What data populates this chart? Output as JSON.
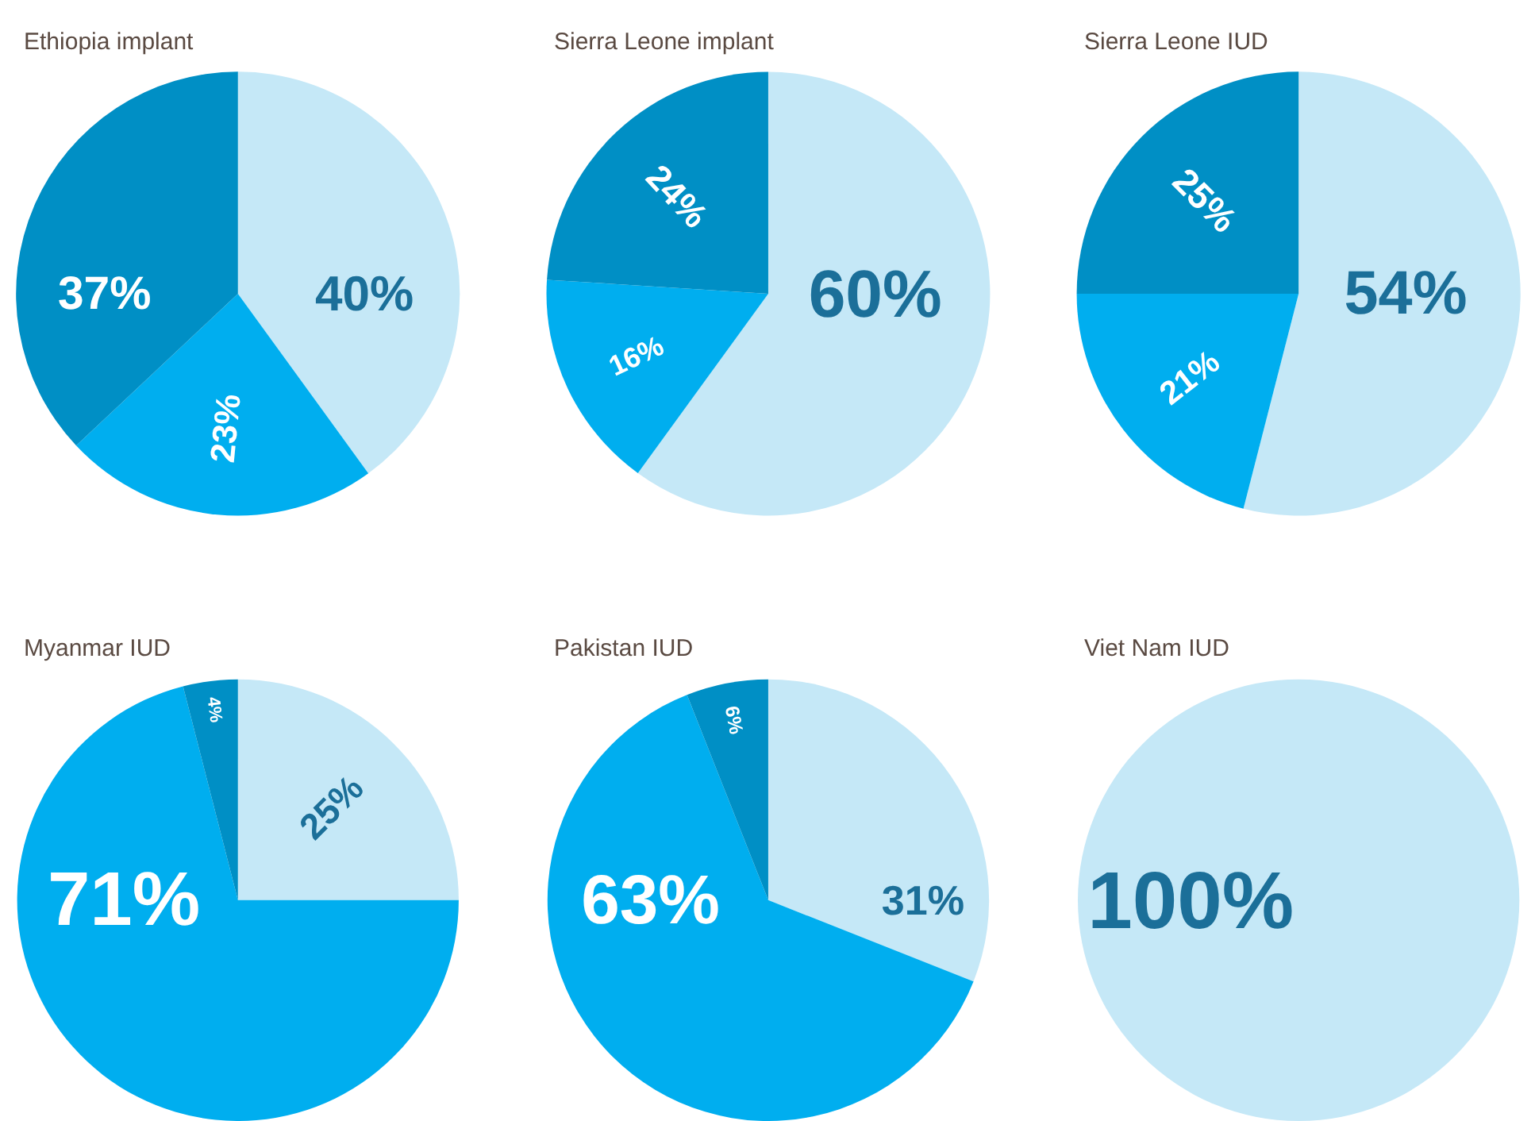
{
  "chart_data": [
    {
      "type": "pie",
      "title": "Ethiopia implant",
      "categories": [
        null,
        null,
        null
      ],
      "values": [
        40,
        23,
        37
      ],
      "colors": [
        "#c5e8f7",
        "#00aeef",
        "#008fc5"
      ],
      "value_labels": [
        "40%",
        "23%",
        "37%"
      ]
    },
    {
      "type": "pie",
      "title": "Sierra Leone implant",
      "categories": [
        null,
        null,
        null
      ],
      "values": [
        60,
        16,
        24
      ],
      "colors": [
        "#c5e8f7",
        "#00aeef",
        "#008fc5"
      ],
      "value_labels": [
        "60%",
        "16%",
        "24%"
      ]
    },
    {
      "type": "pie",
      "title": "Sierra Leone IUD",
      "categories": [
        null,
        null,
        null
      ],
      "values": [
        54,
        21,
        25
      ],
      "colors": [
        "#c5e8f7",
        "#00aeef",
        "#008fc5"
      ],
      "value_labels": [
        "54%",
        "21%",
        "25%"
      ]
    },
    {
      "type": "pie",
      "title": "Myanmar IUD",
      "categories": [
        null,
        null,
        null
      ],
      "values": [
        25,
        71,
        4
      ],
      "colors": [
        "#c5e8f7",
        "#00aeef",
        "#008fc5"
      ],
      "value_labels": [
        "25%",
        "71%",
        "4%"
      ]
    },
    {
      "type": "pie",
      "title": "Pakistan IUD",
      "categories": [
        null,
        null,
        null
      ],
      "values": [
        31,
        63,
        6
      ],
      "colors": [
        "#c5e8f7",
        "#00aeef",
        "#008fc5"
      ],
      "value_labels": [
        "31%",
        "63%",
        "6%"
      ]
    },
    {
      "type": "pie",
      "title": "Viet Nam IUD",
      "categories": [
        null
      ],
      "values": [
        100
      ],
      "colors": [
        "#c5e8f7"
      ],
      "value_labels": [
        "100%"
      ]
    }
  ]
}
